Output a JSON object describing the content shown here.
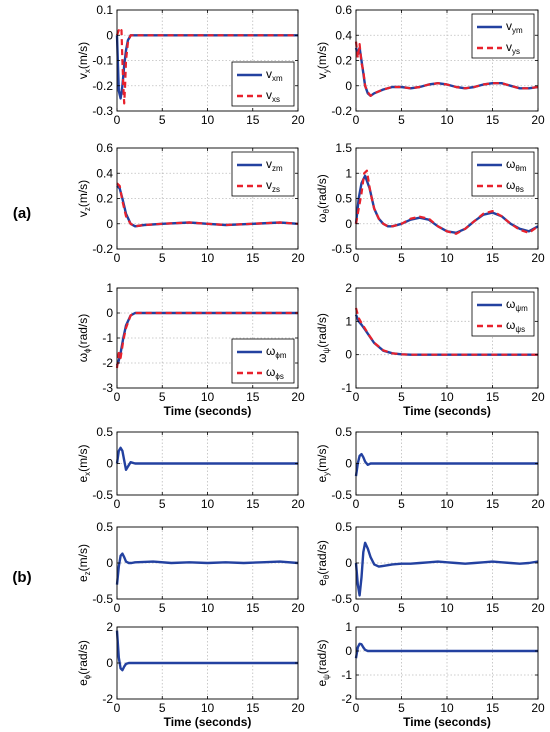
{
  "figure": {
    "part_labels": [
      "(a)",
      "(b)"
    ],
    "xlabel": "Time (seconds)"
  },
  "colors": {
    "model_line": "#2341a0",
    "system_line": "#e8212c",
    "grid": "#bdbdbd",
    "axis": "#000000"
  },
  "chart_data": [
    {
      "id": "vx",
      "group": "a",
      "type": "line",
      "ylabel": {
        "main": "v",
        "sub": "x",
        "unit": "(m/s)"
      },
      "xlim": [
        0,
        20
      ],
      "ylim": [
        -0.3,
        0.1
      ],
      "xticks": [
        0,
        5,
        10,
        15,
        20
      ],
      "yticks": [
        -0.3,
        -0.2,
        -0.1,
        0,
        0.1
      ],
      "xlabel": "",
      "grid": true,
      "legend": "bottom-right",
      "series": [
        {
          "name": "v_xm",
          "legend_main": "v",
          "legend_sub": "xm",
          "style": "solid",
          "x": [
            0,
            0.2,
            0.4,
            0.6,
            0.8,
            1.0,
            1.2,
            1.5,
            2.0,
            3.0,
            20
          ],
          "y": [
            0,
            -0.22,
            -0.25,
            -0.2,
            -0.12,
            -0.06,
            -0.02,
            0.0,
            0.0,
            0.0,
            0.0
          ]
        },
        {
          "name": "v_xs",
          "legend_main": "v",
          "legend_sub": "xs",
          "style": "dashed",
          "x": [
            0,
            0.2,
            0.35,
            0.5,
            0.6,
            0.7,
            0.8,
            0.9,
            1.0,
            1.2,
            1.5,
            2.0,
            3.0,
            20
          ],
          "y": [
            0,
            0.02,
            0.01,
            0.02,
            -0.1,
            -0.2,
            -0.27,
            -0.2,
            -0.1,
            -0.03,
            0.0,
            0.0,
            0.0,
            0.0
          ]
        }
      ]
    },
    {
      "id": "vy",
      "group": "a",
      "type": "line",
      "ylabel": {
        "main": "v",
        "sub": "y",
        "unit": "(m/s)"
      },
      "xlim": [
        0,
        20
      ],
      "ylim": [
        -0.2,
        0.6
      ],
      "xticks": [
        0,
        5,
        10,
        15,
        20
      ],
      "yticks": [
        -0.2,
        0,
        0.2,
        0.4,
        0.6
      ],
      "xlabel": "",
      "grid": true,
      "legend": "top-right",
      "series": [
        {
          "name": "v_ym",
          "legend_main": "v",
          "legend_sub": "ym",
          "style": "solid",
          "x": [
            0,
            0.2,
            0.4,
            0.6,
            0.8,
            1.0,
            1.3,
            1.6,
            2.0,
            3.0,
            4.0,
            5.0,
            6.0,
            7.0,
            8.0,
            9.0,
            10.0,
            11.0,
            12.0,
            13.0,
            14.0,
            15.0,
            16.0,
            17.0,
            18.0,
            19.0,
            20.0
          ],
          "y": [
            0.3,
            0.25,
            0.3,
            0.2,
            0.1,
            0.0,
            -0.06,
            -0.08,
            -0.06,
            -0.03,
            -0.01,
            -0.01,
            -0.02,
            -0.01,
            0.01,
            0.02,
            0.01,
            -0.01,
            -0.02,
            -0.01,
            0.01,
            0.02,
            0.02,
            0.0,
            -0.02,
            -0.02,
            -0.01
          ]
        },
        {
          "name": "v_ys",
          "legend_main": "v",
          "legend_sub": "ys",
          "style": "dashed",
          "x": [
            0,
            0.2,
            0.4,
            0.6,
            0.8,
            1.0,
            1.3,
            1.6,
            2.0,
            3.0,
            4.0,
            5.0,
            6.0,
            7.0,
            8.0,
            9.0,
            10.0,
            11.0,
            12.0,
            13.0,
            14.0,
            15.0,
            16.0,
            17.0,
            18.0,
            19.0,
            20.0
          ],
          "y": [
            0.35,
            0.22,
            0.33,
            0.18,
            0.12,
            0.0,
            -0.05,
            -0.08,
            -0.06,
            -0.03,
            -0.01,
            -0.01,
            -0.02,
            -0.01,
            0.01,
            0.02,
            0.01,
            -0.01,
            -0.02,
            -0.01,
            0.01,
            0.02,
            0.02,
            0.0,
            -0.02,
            -0.02,
            -0.01
          ]
        }
      ]
    },
    {
      "id": "vz",
      "group": "a",
      "type": "line",
      "ylabel": {
        "main": "v",
        "sub": "z",
        "unit": "(m/s)"
      },
      "xlim": [
        0,
        20
      ],
      "ylim": [
        -0.2,
        0.6
      ],
      "xticks": [
        0,
        5,
        10,
        15,
        20
      ],
      "yticks": [
        -0.2,
        0,
        0.2,
        0.4,
        0.6
      ],
      "xlabel": "",
      "grid": true,
      "legend": "top-right",
      "series": [
        {
          "name": "v_zm",
          "legend_main": "v",
          "legend_sub": "zm",
          "style": "solid",
          "x": [
            0,
            0.3,
            0.6,
            1.0,
            1.5,
            2.0,
            3.0,
            5.0,
            8.0,
            10.0,
            12.0,
            15.0,
            18.0,
            20.0
          ],
          "y": [
            0.3,
            0.28,
            0.2,
            0.08,
            0.0,
            -0.02,
            -0.01,
            0.0,
            0.01,
            0.0,
            -0.01,
            0.0,
            0.01,
            0.0
          ]
        },
        {
          "name": "v_zs",
          "legend_main": "v",
          "legend_sub": "zs",
          "style": "dashed",
          "x": [
            0,
            0.3,
            0.6,
            1.0,
            1.5,
            2.0,
            3.0,
            5.0,
            8.0,
            10.0,
            12.0,
            15.0,
            18.0,
            20.0
          ],
          "y": [
            0.32,
            0.3,
            0.18,
            0.06,
            0.0,
            -0.02,
            -0.01,
            0.0,
            0.01,
            0.0,
            -0.01,
            0.0,
            0.01,
            0.0
          ]
        }
      ]
    },
    {
      "id": "wtheta",
      "group": "a",
      "type": "line",
      "ylabel": {
        "main": "ω",
        "sub": "θ",
        "unit": "(rad/s)"
      },
      "xlim": [
        0,
        20
      ],
      "ylim": [
        -0.5,
        1.5
      ],
      "xticks": [
        0,
        5,
        10,
        15,
        20
      ],
      "yticks": [
        -0.5,
        0,
        0.5,
        1,
        1.5
      ],
      "xlabel": "",
      "grid": true,
      "legend": "top-right",
      "series": [
        {
          "name": "ω_θm",
          "legend_main": "ω",
          "legend_sub": "θm",
          "style": "solid",
          "x": [
            0,
            0.3,
            0.6,
            1.0,
            1.5,
            2.0,
            2.5,
            3.0,
            3.5,
            4.0,
            5.0,
            6.0,
            7.0,
            8.0,
            9.0,
            10.0,
            11.0,
            12.0,
            13.0,
            14.0,
            15.0,
            16.0,
            17.0,
            18.0,
            19.0,
            20.0
          ],
          "y": [
            0.0,
            0.5,
            0.8,
            0.95,
            0.7,
            0.3,
            0.1,
            0.0,
            -0.05,
            -0.05,
            0.0,
            0.08,
            0.12,
            0.08,
            -0.05,
            -0.15,
            -0.18,
            -0.1,
            0.05,
            0.18,
            0.22,
            0.15,
            0.0,
            -0.1,
            -0.15,
            -0.05
          ]
        },
        {
          "name": "ω_θs",
          "legend_main": "ω",
          "legend_sub": "θs",
          "style": "dashed",
          "x": [
            0,
            0.3,
            0.6,
            0.9,
            1.2,
            1.6,
            2.0,
            2.5,
            3.0,
            3.5,
            4.0,
            5.0,
            6.0,
            7.0,
            8.0,
            9.0,
            10.0,
            11.0,
            12.0,
            13.0,
            14.0,
            15.0,
            16.0,
            17.0,
            18.0,
            19.0,
            20.0
          ],
          "y": [
            0.0,
            0.3,
            0.6,
            1.0,
            1.05,
            0.6,
            0.3,
            0.1,
            0.0,
            -0.05,
            -0.05,
            0.0,
            0.1,
            0.14,
            0.1,
            -0.05,
            -0.15,
            -0.2,
            -0.1,
            0.05,
            0.2,
            0.25,
            0.15,
            0.0,
            -0.12,
            -0.18,
            -0.05
          ]
        }
      ]
    },
    {
      "id": "wphi",
      "group": "a",
      "type": "line",
      "ylabel": {
        "main": "ω",
        "sub": "ϕ",
        "unit": "(rad/s)"
      },
      "xlim": [
        0,
        20
      ],
      "ylim": [
        -3,
        1
      ],
      "xticks": [
        0,
        5,
        10,
        15,
        20
      ],
      "yticks": [
        -3,
        -2,
        -1,
        0,
        1
      ],
      "xlabel": "Time (seconds)",
      "grid": true,
      "legend": "bottom-right",
      "series": [
        {
          "name": "ω_ϕm",
          "legend_main": "ω",
          "legend_sub": "ϕm",
          "style": "solid",
          "x": [
            0,
            0.2,
            0.4,
            0.7,
            1.0,
            1.5,
            2.0,
            3.0,
            20
          ],
          "y": [
            -2.1,
            -1.9,
            -1.6,
            -1.0,
            -0.5,
            -0.1,
            0.0,
            0.0,
            0.0
          ]
        },
        {
          "name": "ω_ϕs",
          "legend_main": "ω",
          "legend_sub": "ϕs",
          "style": "dashed",
          "x": [
            0,
            0.2,
            0.4,
            0.7,
            1.0,
            1.5,
            2.0,
            3.0,
            20
          ],
          "y": [
            -2.2,
            -1.6,
            -1.8,
            -1.1,
            -0.6,
            -0.1,
            0.0,
            0.0,
            0.0
          ]
        }
      ]
    },
    {
      "id": "wpsi",
      "group": "a",
      "type": "line",
      "ylabel": {
        "main": "ω",
        "sub": "ψ",
        "unit": "(rad/s)"
      },
      "xlim": [
        0,
        20
      ],
      "ylim": [
        -1,
        2
      ],
      "xticks": [
        0,
        5,
        10,
        15,
        20
      ],
      "yticks": [
        -1,
        0,
        1,
        2
      ],
      "xlabel": "Time (seconds)",
      "grid": true,
      "legend": "top-right",
      "series": [
        {
          "name": "ω_ψm",
          "legend_main": "ω",
          "legend_sub": "ψm",
          "style": "solid",
          "x": [
            0,
            0.3,
            0.6,
            1.0,
            1.5,
            2.0,
            3.0,
            4.0,
            5.0,
            6.0,
            20
          ],
          "y": [
            1.2,
            1.0,
            0.9,
            0.75,
            0.55,
            0.35,
            0.12,
            0.04,
            0.01,
            0.0,
            0.0
          ]
        },
        {
          "name": "ω_ψs",
          "legend_main": "ω",
          "legend_sub": "ψs",
          "style": "dashed",
          "x": [
            0,
            0.3,
            0.6,
            1.0,
            1.5,
            2.0,
            3.0,
            4.0,
            5.0,
            6.0,
            20
          ],
          "y": [
            1.4,
            1.1,
            0.95,
            0.78,
            0.56,
            0.36,
            0.13,
            0.04,
            0.01,
            0.0,
            0.0
          ]
        }
      ]
    },
    {
      "id": "ex",
      "group": "b",
      "type": "line",
      "ylabel": {
        "main": "e",
        "sub": "x",
        "unit": "(m/s)"
      },
      "xlim": [
        0,
        20
      ],
      "ylim": [
        -0.5,
        0.5
      ],
      "xticks": [
        0,
        5,
        10,
        15,
        20
      ],
      "yticks": [
        -0.5,
        0,
        0.5
      ],
      "xlabel": "",
      "grid": true,
      "legend": "none",
      "series": [
        {
          "name": "e_x",
          "style": "solid",
          "x": [
            0,
            0.2,
            0.4,
            0.6,
            0.8,
            1.0,
            1.2,
            1.5,
            2.0,
            3.0,
            20
          ],
          "y": [
            0.0,
            0.2,
            0.25,
            0.2,
            0.05,
            -0.1,
            -0.05,
            0.02,
            0.0,
            0.0,
            0.0
          ]
        }
      ]
    },
    {
      "id": "ey",
      "group": "b",
      "type": "line",
      "ylabel": {
        "main": "e",
        "sub": "y",
        "unit": "(m/s)"
      },
      "xlim": [
        0,
        20
      ],
      "ylim": [
        -0.5,
        0.5
      ],
      "xticks": [
        0,
        5,
        10,
        15,
        20
      ],
      "yticks": [
        -0.5,
        0,
        0.5
      ],
      "xlabel": "",
      "grid": true,
      "legend": "none",
      "series": [
        {
          "name": "e_y",
          "style": "solid",
          "x": [
            0,
            0.2,
            0.4,
            0.6,
            0.8,
            1.0,
            1.3,
            1.6,
            2.0,
            3.0,
            20
          ],
          "y": [
            -0.2,
            0.0,
            0.12,
            0.15,
            0.1,
            0.03,
            -0.02,
            0.0,
            0.0,
            0.0,
            0.0
          ]
        }
      ]
    },
    {
      "id": "ez",
      "group": "b",
      "type": "line",
      "ylabel": {
        "main": "e",
        "sub": "z",
        "unit": "(m/s)"
      },
      "xlim": [
        0,
        20
      ],
      "ylim": [
        -0.5,
        0.5
      ],
      "xticks": [
        0,
        5,
        10,
        15,
        20
      ],
      "yticks": [
        -0.5,
        0,
        0.5
      ],
      "xlabel": "",
      "grid": true,
      "legend": "none",
      "series": [
        {
          "name": "e_z",
          "style": "solid",
          "x": [
            0,
            0.2,
            0.4,
            0.6,
            0.8,
            1.0,
            1.3,
            1.6,
            2.0,
            4.0,
            6.0,
            8.0,
            10.0,
            12.0,
            14.0,
            16.0,
            18.0,
            20.0
          ],
          "y": [
            -0.3,
            -0.05,
            0.1,
            0.13,
            0.08,
            0.02,
            0.0,
            0.0,
            0.01,
            0.02,
            0.0,
            0.01,
            0.0,
            0.01,
            0.0,
            0.01,
            0.02,
            0.0
          ]
        }
      ]
    },
    {
      "id": "etheta",
      "group": "b",
      "type": "line",
      "ylabel": {
        "main": "e",
        "sub": "θ",
        "unit": "(rad/s)"
      },
      "xlim": [
        0,
        20
      ],
      "ylim": [
        -0.5,
        0.5
      ],
      "xticks": [
        0,
        5,
        10,
        15,
        20
      ],
      "yticks": [
        -0.5,
        0,
        0.5
      ],
      "xlabel": "",
      "grid": true,
      "legend": "none",
      "series": [
        {
          "name": "e_θ",
          "style": "solid",
          "x": [
            0,
            0.2,
            0.4,
            0.6,
            0.8,
            1.0,
            1.3,
            1.6,
            2.0,
            2.5,
            3.0,
            4.0,
            5.0,
            6.0,
            7.0,
            8.0,
            9.0,
            10.0,
            11.0,
            12.0,
            13.0,
            14.0,
            15.0,
            16.0,
            17.0,
            18.0,
            19.0,
            20.0
          ],
          "y": [
            0.0,
            -0.3,
            -0.45,
            -0.2,
            0.15,
            0.28,
            0.2,
            0.08,
            -0.02,
            -0.05,
            -0.04,
            -0.02,
            -0.01,
            -0.01,
            0.0,
            0.01,
            0.02,
            0.01,
            0.0,
            -0.01,
            0.0,
            0.01,
            0.02,
            0.01,
            0.0,
            -0.01,
            0.0,
            0.02
          ]
        }
      ]
    },
    {
      "id": "ephi",
      "group": "b",
      "type": "line",
      "ylabel": {
        "main": "e",
        "sub": "ϕ",
        "unit": "(rad/s)"
      },
      "xlim": [
        0,
        20
      ],
      "ylim": [
        -2,
        2
      ],
      "xticks": [
        0,
        5,
        10,
        15,
        20
      ],
      "yticks": [
        -2,
        0,
        2
      ],
      "xlabel": "Time (seconds)",
      "grid": true,
      "legend": "none",
      "series": [
        {
          "name": "e_ϕ",
          "style": "solid",
          "x": [
            0,
            0.2,
            0.4,
            0.6,
            0.8,
            1.0,
            1.3,
            1.6,
            2.0,
            3.0,
            20
          ],
          "y": [
            1.8,
            0.3,
            -0.3,
            -0.4,
            -0.2,
            -0.05,
            0.0,
            0.0,
            0.0,
            0.0,
            0.0
          ]
        }
      ]
    },
    {
      "id": "epsi",
      "group": "b",
      "type": "line",
      "ylabel": {
        "main": "e",
        "sub": "ψ",
        "unit": "(rad/s)"
      },
      "xlim": [
        0,
        20
      ],
      "ylim": [
        -2,
        1
      ],
      "xticks": [
        0,
        5,
        10,
        15,
        20
      ],
      "yticks": [
        -2,
        -1,
        0,
        1
      ],
      "xlabel": "Time (seconds)",
      "grid": true,
      "legend": "none",
      "series": [
        {
          "name": "e_ψ",
          "style": "solid",
          "x": [
            0,
            0.2,
            0.4,
            0.6,
            0.8,
            1.0,
            1.3,
            1.6,
            2.0,
            3.0,
            20
          ],
          "y": [
            -0.3,
            0.15,
            0.3,
            0.28,
            0.15,
            0.05,
            0.0,
            0.0,
            0.0,
            0.0,
            0.0
          ]
        }
      ]
    }
  ]
}
